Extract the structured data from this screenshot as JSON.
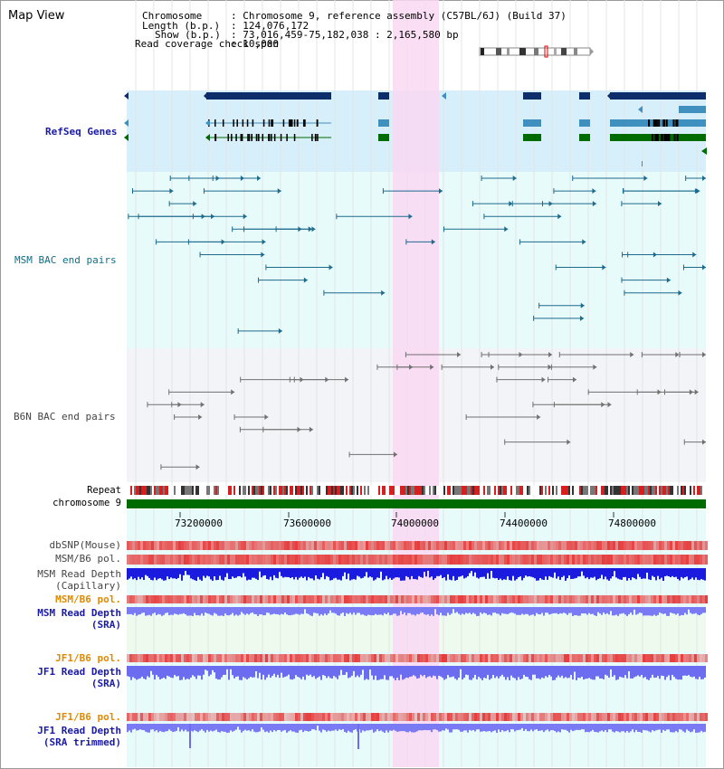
{
  "window": {
    "title": "Map View"
  },
  "header": {
    "chromosome_label": "Chromosome",
    "chromosome_value": ": Chromosome 9, reference assembly (C57BL/6J) (Build 37)",
    "length_label": "Length (b.p.)",
    "length_value": ": 124,076,172",
    "show_label": "Show (b.p.)",
    "show_value": ": 73,016,459-75,182,038 : 2,165,580 bp",
    "coverage_label": "Read coverage check span",
    "coverage_value": ": 10,000"
  },
  "tracks": {
    "refseq": "RefSeq Genes",
    "msm_bac": "MSM BAC end pairs",
    "b6n_bac": "B6N BAC end pairs",
    "repeat": "Repeat",
    "chromosome": "chromosome 9",
    "dbsnp": "dbSNP(Mouse)",
    "msm_b6_pol_1": "MSM/B6 pol.",
    "msm_depth_cap_1": "MSM Read Depth",
    "msm_depth_cap_2": "(Capillary)",
    "msm_b6_pol_2": "MSM/B6 pol.",
    "msm_depth_sra_1": "MSM Read Depth",
    "msm_depth_sra_2": "(SRA)",
    "jf1_pol_1": "JF1/B6 pol.",
    "jf1_depth_sra_1": "JF1 Read Depth",
    "jf1_depth_sra_2": "(SRA)",
    "jf1_pol_2": "JF1/B6 pol.",
    "jf1_depth_trim_1": "JF1 Read Depth",
    "jf1_depth_trim_2": "(SRA trimmed)"
  },
  "axis": {
    "ticks": [
      "73200000",
      "73600000",
      "74000000",
      "74400000",
      "74800000"
    ]
  },
  "colors": {
    "highlight": "#f9d8f2",
    "refseq_bg": "#d6effa",
    "bac_bg": "#e8fbfb",
    "b6n_bg": "#f3f4f8",
    "gene_dark": "#0e2d6b",
    "gene_mid": "#3f8fbf",
    "gene_green": "#006b00",
    "msm_line": "#1c6a8c",
    "b6n_line": "#707070",
    "label_blue": "#1a1aa6",
    "label_teal": "#0f6f86",
    "label_orange": "#e08a00",
    "label_grey": "#444444"
  }
}
